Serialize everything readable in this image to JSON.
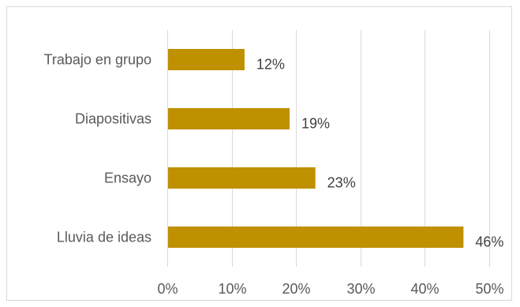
{
  "chart_data": {
    "type": "bar",
    "orientation": "horizontal",
    "categories": [
      "Trabajo en grupo",
      "Diapositivas",
      "Ensayo",
      "Lluvia de ideas"
    ],
    "values": [
      12,
      19,
      23,
      46
    ],
    "data_labels": [
      "12%",
      "19%",
      "23%",
      "46%"
    ],
    "x_ticks": [
      "0%",
      "10%",
      "20%",
      "30%",
      "40%",
      "50%"
    ],
    "xlim": [
      0,
      50
    ],
    "grid": true,
    "legend": "none",
    "bar_color": "#bf9000",
    "border_color": "#d9d9d9"
  }
}
